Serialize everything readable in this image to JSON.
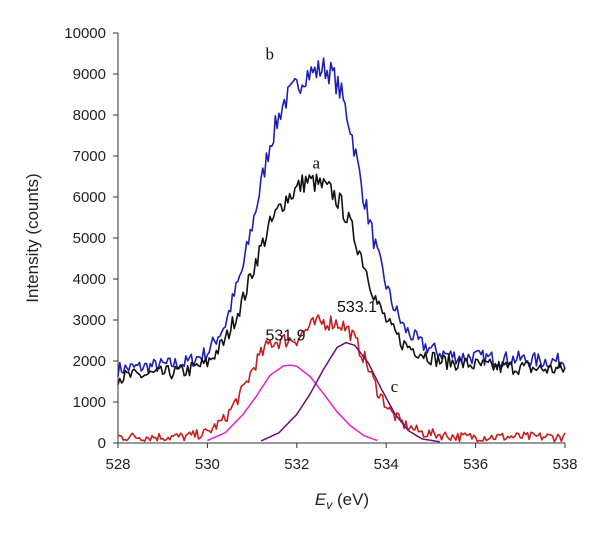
{
  "chart_data": {
    "type": "line",
    "title": "",
    "xlabel_italic": "E",
    "xlabel_sub": "v",
    "xlabel_unit": " (eV)",
    "ylabel": "Intensity (counts)",
    "xlim": [
      528,
      538
    ],
    "ylim": [
      0,
      10000
    ],
    "xticks": [
      "528",
      "530",
      "532",
      "534",
      "536",
      "538"
    ],
    "yticks": [
      "0",
      "1000",
      "2000",
      "3000",
      "4000",
      "5000",
      "6000",
      "7000",
      "8000",
      "9000",
      "10000"
    ],
    "series": [
      {
        "name": "b",
        "color": "#1f1fb5",
        "x": [
          528.0,
          528.5,
          529.0,
          529.5,
          530.0,
          530.4,
          530.8,
          531.1,
          531.4,
          531.7,
          532.0,
          532.2,
          532.4,
          532.6,
          532.8,
          533.0,
          533.2,
          533.5,
          533.8,
          534.1,
          534.4,
          534.8,
          535.2,
          535.6,
          536.0,
          536.5,
          537.0,
          537.5,
          538.0
        ],
        "y": [
          1800,
          1850,
          1900,
          1950,
          2200,
          2900,
          4300,
          5800,
          7300,
          8300,
          8700,
          9000,
          9050,
          9150,
          9000,
          8500,
          7700,
          6000,
          4600,
          3500,
          2800,
          2400,
          2200,
          2100,
          2100,
          2050,
          2050,
          2000,
          2000
        ]
      },
      {
        "name": "a",
        "color": "#111111",
        "x": [
          528.0,
          528.5,
          529.0,
          529.5,
          530.0,
          530.4,
          530.8,
          531.1,
          531.4,
          531.7,
          532.0,
          532.2,
          532.4,
          532.6,
          532.8,
          533.0,
          533.2,
          533.5,
          533.8,
          534.1,
          534.4,
          534.8,
          535.2,
          535.6,
          536.0,
          536.5,
          537.0,
          537.5,
          538.0
        ],
        "y": [
          1600,
          1650,
          1700,
          1750,
          1950,
          2500,
          3500,
          4500,
          5300,
          5900,
          6200,
          6400,
          6350,
          6250,
          6100,
          5800,
          5300,
          4400,
          3400,
          2800,
          2400,
          2200,
          2000,
          1950,
          1900,
          1850,
          1850,
          1800,
          1800
        ]
      },
      {
        "name": "c",
        "color": "#c81e1e",
        "x": [
          528.0,
          528.5,
          529.0,
          529.5,
          530.0,
          530.4,
          530.8,
          531.1,
          531.4,
          531.7,
          532.0,
          532.2,
          532.4,
          532.6,
          532.8,
          533.0,
          533.2,
          533.5,
          533.8,
          534.1,
          534.4,
          534.8,
          535.2,
          535.6,
          536.0,
          536.5,
          537.0,
          537.5,
          538.0
        ],
        "y": [
          150,
          150,
          150,
          150,
          250,
          600,
          1300,
          2000,
          2450,
          2500,
          2550,
          2750,
          2900,
          2950,
          2950,
          2900,
          2700,
          2100,
          1300,
          750,
          450,
          250,
          200,
          150,
          150,
          150,
          150,
          150,
          150
        ]
      },
      {
        "name": "fit-531.9",
        "color": "#e81fd6",
        "x": [
          530.0,
          530.4,
          530.8,
          531.1,
          531.4,
          531.7,
          531.85,
          532.0,
          532.3,
          532.6,
          532.9,
          533.2,
          533.5,
          533.8
        ],
        "y": [
          60,
          250,
          700,
          1150,
          1650,
          1880,
          1900,
          1870,
          1620,
          1200,
          760,
          420,
          180,
          60
        ]
      },
      {
        "name": "fit-533.1",
        "color": "#6a0f6e",
        "x": [
          531.2,
          531.6,
          532.0,
          532.3,
          532.6,
          532.9,
          533.1,
          533.3,
          533.6,
          533.9,
          534.2,
          534.5,
          534.8,
          535.2
        ],
        "y": [
          50,
          250,
          700,
          1200,
          1800,
          2330,
          2450,
          2380,
          1950,
          1300,
          700,
          300,
          100,
          30
        ]
      }
    ],
    "annotations": [
      {
        "text": "b",
        "x": 531.3,
        "y": 9350
      },
      {
        "text": "a",
        "x": 532.35,
        "y": 6700
      },
      {
        "text": "c",
        "x": 534.1,
        "y": 1250
      },
      {
        "text": "533.1",
        "x": 532.9,
        "y": 3200
      },
      {
        "text": "531.9",
        "x": 531.3,
        "y": 2500
      }
    ]
  }
}
